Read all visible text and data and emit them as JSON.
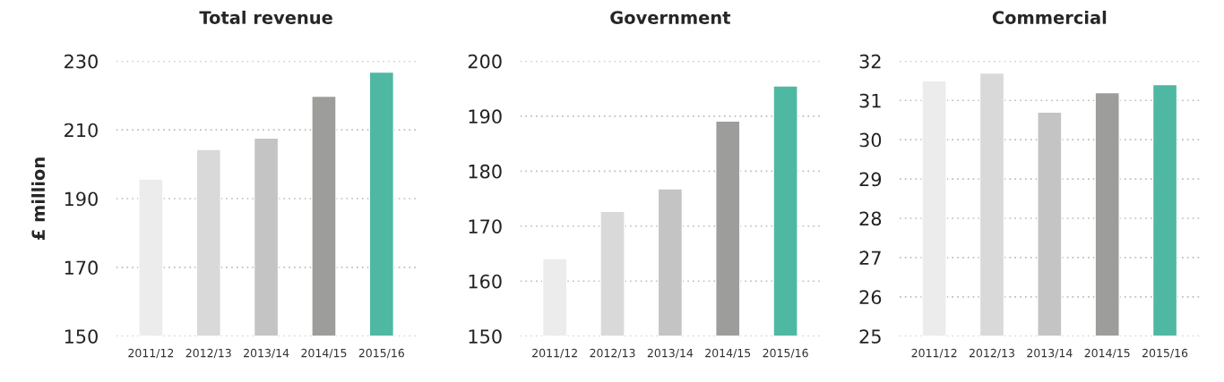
{
  "chart_data": [
    {
      "type": "bar",
      "title": "Total revenue",
      "ylabel": "£ million",
      "categories": [
        "2011/12",
        "2012/13",
        "2013/14",
        "2014/15",
        "2015/16"
      ],
      "values": [
        195.7,
        204.3,
        207.6,
        219.8,
        226.8
      ],
      "colors": [
        "#ececec",
        "#d9d9d9",
        "#c4c4c4",
        "#9d9d9b",
        "#4fb8a3"
      ],
      "ylim": [
        150,
        230
      ],
      "yticks": [
        150,
        170,
        190,
        210,
        230
      ],
      "grid": "y"
    },
    {
      "type": "bar",
      "title": "Government",
      "categories": [
        "2011/12",
        "2012/13",
        "2013/14",
        "2014/15",
        "2015/16"
      ],
      "values": [
        164.1,
        172.7,
        176.8,
        189.1,
        195.5
      ],
      "colors": [
        "#ececec",
        "#d9d9d9",
        "#c4c4c4",
        "#9d9d9b",
        "#4fb8a3"
      ],
      "ylim": [
        150,
        200
      ],
      "yticks": [
        150,
        160,
        170,
        180,
        190,
        200
      ],
      "grid": "y"
    },
    {
      "type": "bar",
      "title": "Commercial",
      "categories": [
        "2011/12",
        "2012/13",
        "2013/14",
        "2014/15",
        "2015/16"
      ],
      "values": [
        31.5,
        31.7,
        30.7,
        31.2,
        31.4
      ],
      "colors": [
        "#ececec",
        "#d9d9d9",
        "#c4c4c4",
        "#9d9d9b",
        "#4fb8a3"
      ],
      "ylim": [
        25,
        32
      ],
      "yticks": [
        25,
        26,
        27,
        28,
        29,
        30,
        31,
        32
      ],
      "grid": "y"
    }
  ]
}
